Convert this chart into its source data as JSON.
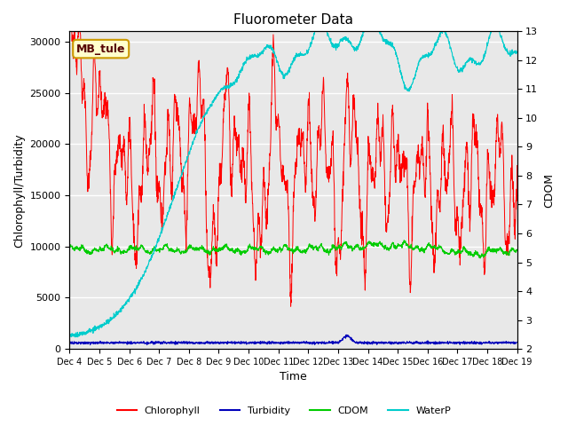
{
  "title": "Fluorometer Data",
  "xlabel": "Time",
  "ylabel_left": "Chlorophyll/Turbidity",
  "ylabel_right": "CDOM",
  "ylim_left": [
    0,
    31000
  ],
  "ylim_right": [
    2.0,
    13.0
  ],
  "yticks_left": [
    0,
    5000,
    10000,
    15000,
    20000,
    25000,
    30000
  ],
  "yticks_right": [
    2.0,
    3.0,
    4.0,
    5.0,
    6.0,
    7.0,
    8.0,
    9.0,
    10.0,
    11.0,
    12.0,
    13.0
  ],
  "xtick_labels": [
    "Dec 4",
    "Dec 5",
    "Dec 6",
    "Dec 7",
    "Dec 8",
    "Dec 9",
    "Dec 10",
    "Dec 11",
    "Dec 12",
    "Dec 13",
    "Dec 14",
    "Dec 15",
    "Dec 16",
    "Dec 17",
    "Dec 18",
    "Dec 19"
  ],
  "annotation_text": "MB_tule",
  "colors": {
    "chlorophyll": "#ff0000",
    "turbidity": "#0000bb",
    "cdom": "#00cc00",
    "waterp": "#00cccc",
    "background": "#e8e8e8",
    "annotation_bg": "#ffffcc",
    "annotation_border": "#cc9900"
  },
  "legend_entries": [
    "Chlorophyll",
    "Turbidity",
    "CDOM",
    "WaterP"
  ],
  "n_points": 2000
}
